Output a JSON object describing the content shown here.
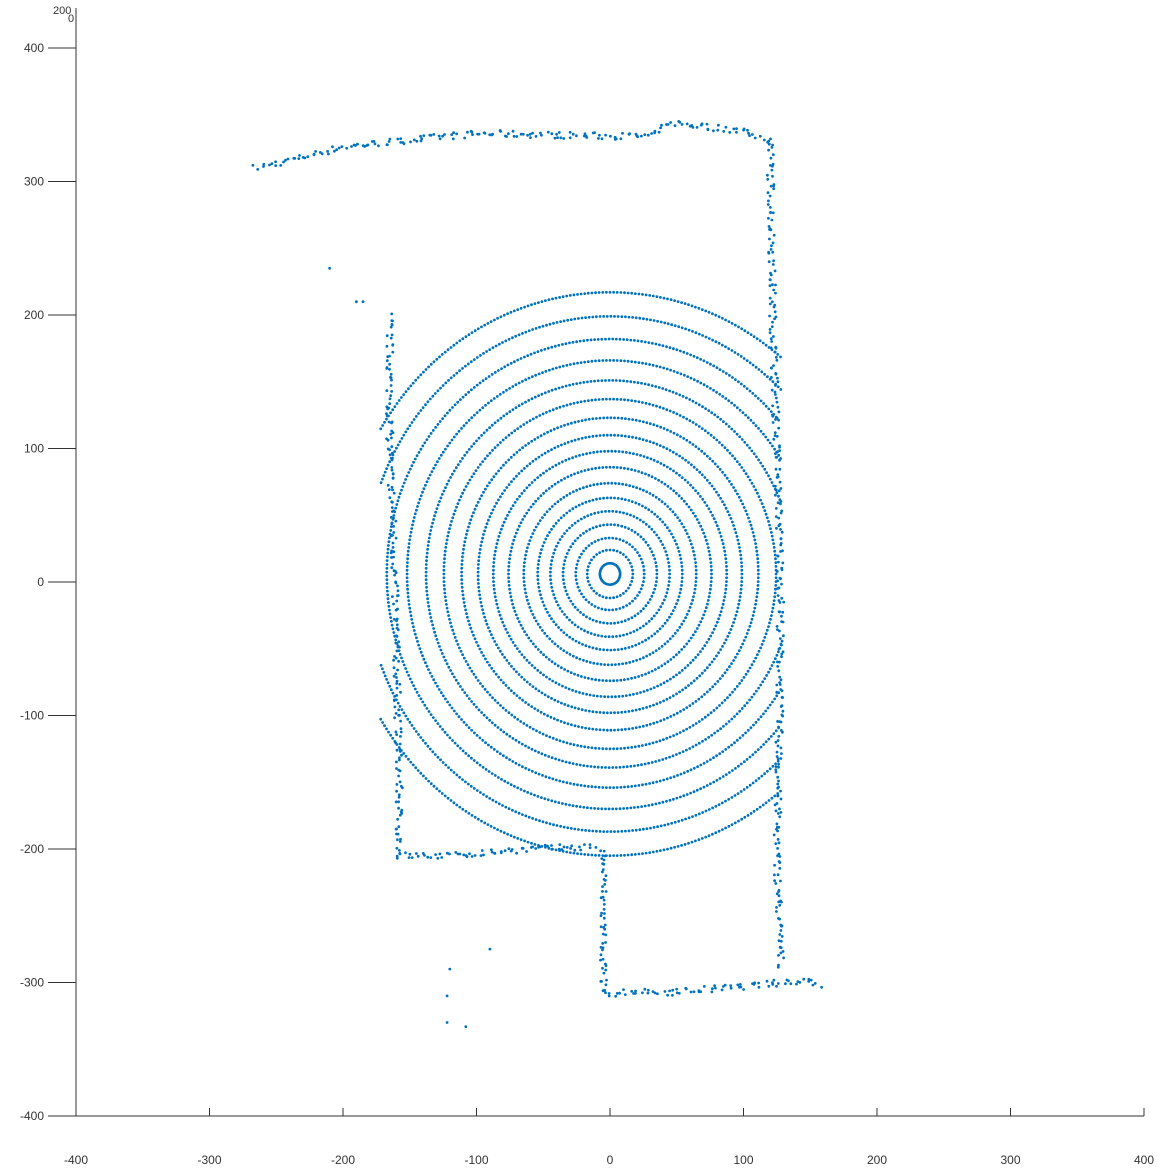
{
  "chart_data": {
    "type": "scatter",
    "title": "",
    "xlabel": "",
    "ylabel": "",
    "xlim": [
      -400,
      400
    ],
    "ylim": [
      -400,
      400
    ],
    "xticks": [
      -400,
      -300,
      -200,
      -100,
      0,
      100,
      200,
      300,
      400
    ],
    "yticks": [
      -400,
      -300,
      -200,
      -100,
      0,
      100,
      200,
      300,
      400
    ],
    "grid": false,
    "marker_color": "#0072BD",
    "corner_labels": {
      "z_top": "200",
      "z_bottom": "0"
    },
    "series": [
      {
        "ring_radii": [
          8,
          18,
          27,
          37,
          47,
          57,
          68,
          80,
          92,
          104,
          117,
          131,
          145,
          160,
          176,
          193,
          211
        ],
        "ring_xscale": 0.95,
        "room_walls": {
          "top_wall": [
            [
              -265,
              310
            ],
            [
              -200,
              326
            ],
            [
              -100,
              336
            ],
            [
              -50,
              335
            ],
            [
              0,
              334
            ],
            [
              30,
              334
            ],
            [
              45,
              344
            ],
            [
              100,
              338
            ],
            [
              120,
              330
            ]
          ],
          "left_wall": [
            [
              -165,
              200
            ],
            [
              -165,
              100
            ],
            [
              -162,
              30
            ],
            [
              -160,
              -50
            ],
            [
              -158,
              -150
            ],
            [
              -158,
              -205
            ]
          ],
          "right_wall": [
            [
              120,
              330
            ],
            [
              122,
              200
            ],
            [
              125,
              100
            ],
            [
              128,
              0
            ],
            [
              127,
              -100
            ],
            [
              125,
              -200
            ],
            [
              128,
              -290
            ]
          ],
          "bottom_wall": [
            [
              -5,
              -308
            ],
            [
              50,
              -307
            ],
            [
              100,
              -303
            ],
            [
              150,
              -298
            ],
            [
              160,
              -303
            ]
          ],
          "doorway_left": [
            [
              -160,
              -205
            ],
            [
              -120,
              -205
            ],
            [
              -60,
              -200
            ],
            [
              -10,
              -198
            ]
          ],
          "doorway_stub": [
            [
              -5,
              -200
            ],
            [
              -5,
              -260
            ],
            [
              -5,
              -308
            ]
          ]
        },
        "stray_points": [
          [
            -120,
            -290
          ],
          [
            -122,
            -310
          ],
          [
            -122,
            -330
          ],
          [
            -108,
            -333
          ],
          [
            -90,
            -275
          ],
          [
            -190,
            210
          ],
          [
            -185,
            210
          ],
          [
            -210,
            235
          ]
        ]
      }
    ]
  }
}
